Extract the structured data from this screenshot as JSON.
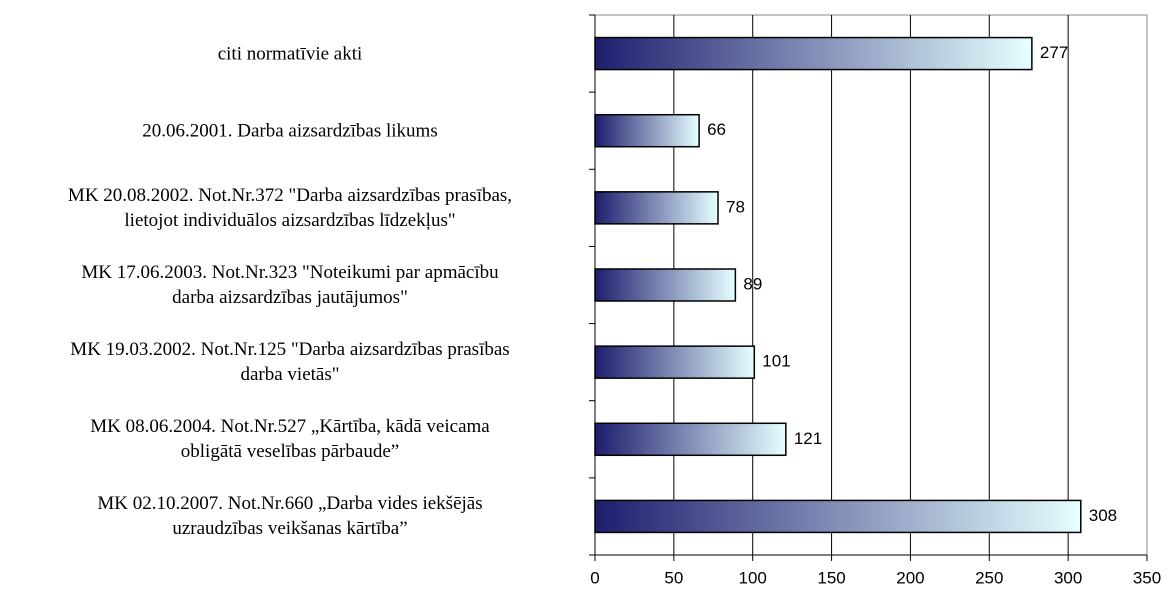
{
  "chart_data": {
    "type": "bar",
    "orientation": "horizontal",
    "categories": [
      "citi normatīvie akti",
      "20.06.2001. Darba aizsardzības likums",
      "MK 20.08.2002. Not.Nr.372 \"Darba aizsardzības prasības,\nlietojot individuālos aizsardzības līdzekļus\"",
      "MK 17.06.2003. Not.Nr.323 \"Noteikumi par apmācību\ndarba aizsardzības jautājumos\"",
      "MK 19.03.2002. Not.Nr.125 \"Darba aizsardzības prasības\ndarba vietās\"",
      "MK 08.06.2004. Not.Nr.527 „Kārtība, kādā veicama\nobligātā veselības pārbaude”",
      "MK 02.10.2007. Not.Nr.660 „Darba vides iekšējās\nuzraudzības veikšanas kārtība”"
    ],
    "values": [
      277,
      66,
      78,
      89,
      101,
      121,
      308
    ],
    "xlim": [
      0,
      350
    ],
    "xticks": [
      0,
      50,
      100,
      150,
      200,
      250,
      300,
      350
    ],
    "grid": true,
    "color_start": "#1e1e6e",
    "color_end": "#e6ffff"
  }
}
